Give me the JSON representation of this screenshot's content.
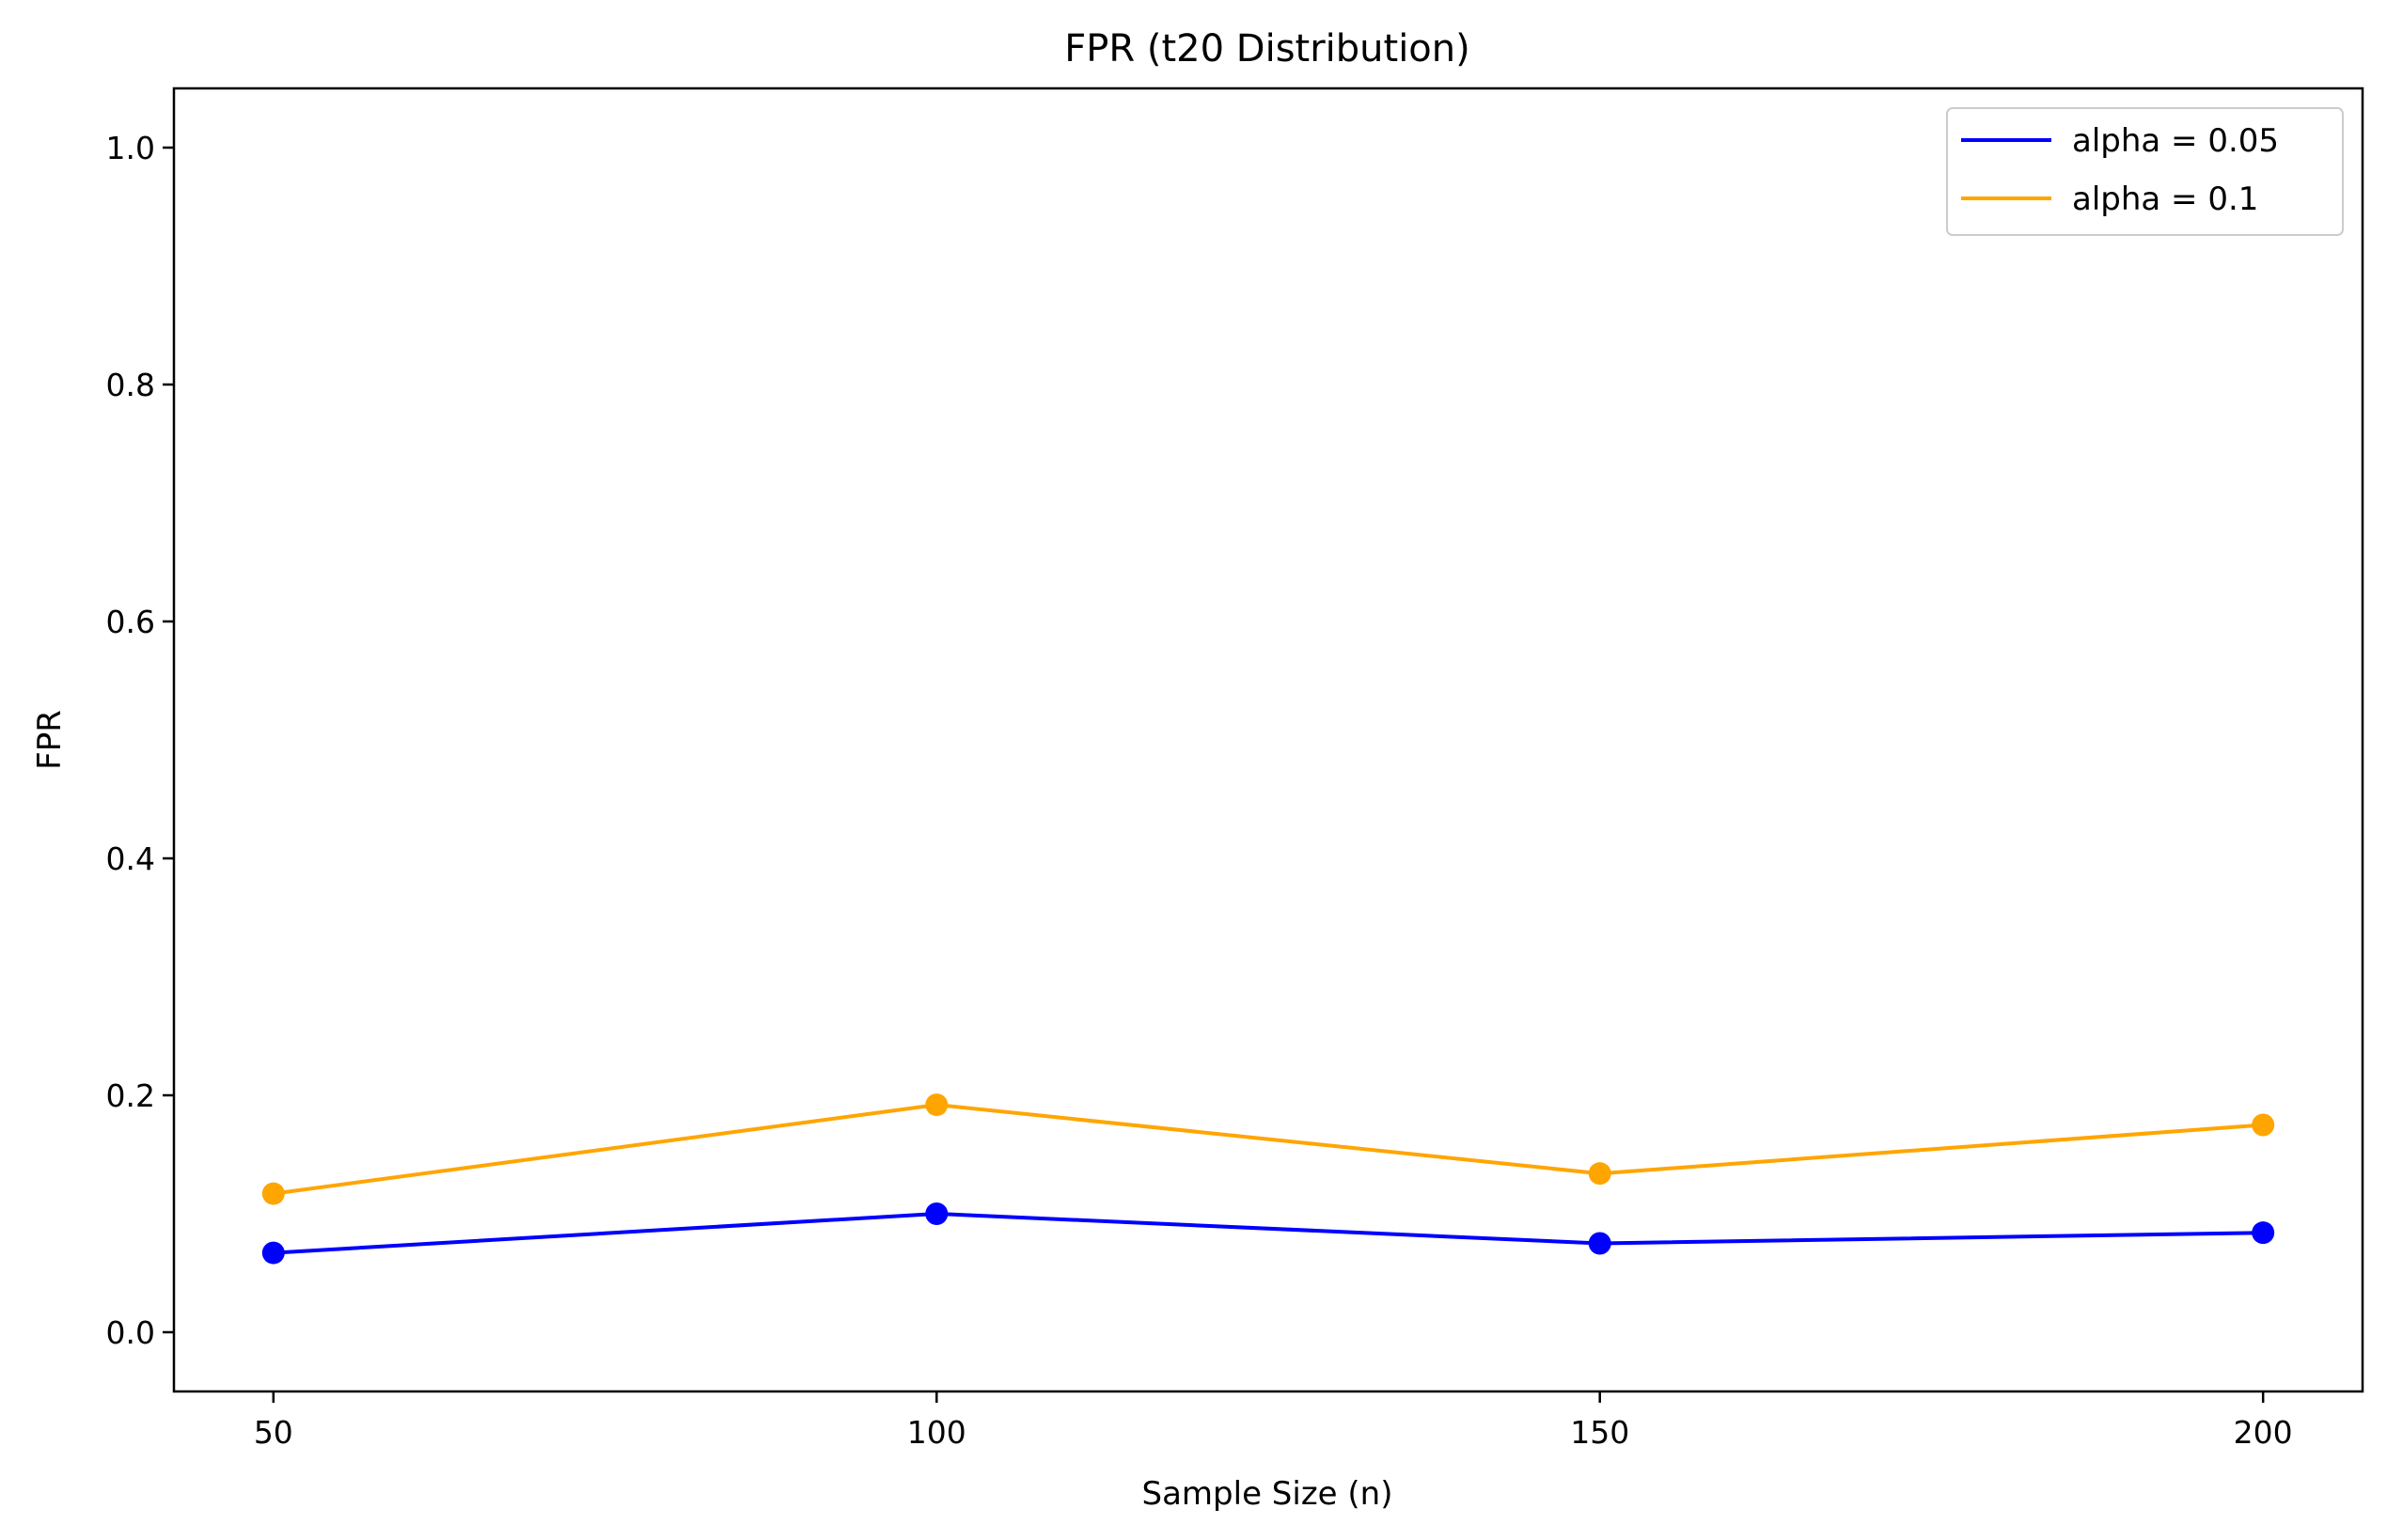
{
  "chart_data": {
    "type": "line",
    "title": "FPR (t20 Distribution)",
    "xlabel": "Sample Size (n)",
    "ylabel": "FPR",
    "x": [
      50,
      100,
      150,
      200
    ],
    "x_tick_labels": [
      "50",
      "100",
      "150",
      "200"
    ],
    "y_ticks": [
      0.0,
      0.2,
      0.4,
      0.6,
      0.8,
      1.0
    ],
    "y_tick_labels": [
      "0.0",
      "0.2",
      "0.4",
      "0.6",
      "0.8",
      "1.0"
    ],
    "xlim": [
      42.5,
      207.5
    ],
    "ylim": [
      -0.05,
      1.05
    ],
    "grid": false,
    "legend_position": "top-right",
    "series": [
      {
        "name": "alpha = 0.05",
        "color": "#0000ff",
        "marker": "circle",
        "values": [
          0.067,
          0.1,
          0.075,
          0.084
        ]
      },
      {
        "name": "alpha = 0.1",
        "color": "#ffa500",
        "marker": "circle",
        "values": [
          0.117,
          0.192,
          0.134,
          0.175
        ]
      }
    ]
  }
}
